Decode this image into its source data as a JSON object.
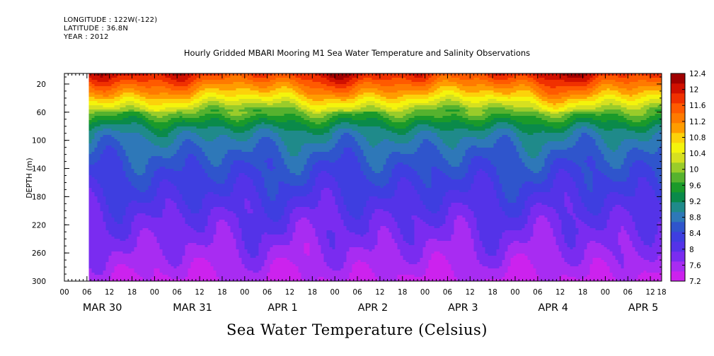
{
  "header": {
    "longitude": "LONGITUDE : 122W(-122)",
    "latitude": "LATITUDE : 36.8N",
    "year": "YEAR : 2012"
  },
  "chart_data": {
    "type": "heatmap",
    "title": "Hourly Gridded MBARI Mooring M1 Sea Water Temperature and Salinity Observations",
    "subtitle": "Sea Water Temperature (Celsius)",
    "xlabel": "",
    "ylabel": "DEPTH (m)",
    "x_unit": "hours since MAR 30 00:00",
    "xlim": [
      -6,
      153
    ],
    "data_start_hour": 0.5,
    "ylim": [
      300,
      5
    ],
    "y_reversed": true,
    "y_ticks": [
      20,
      60,
      100,
      140,
      180,
      220,
      260,
      300
    ],
    "x_hour_ticks": [
      "00",
      "06",
      "12",
      "18",
      "00",
      "06",
      "12",
      "18",
      "00",
      "06",
      "12",
      "18",
      "00",
      "06",
      "12",
      "18",
      "00",
      "06",
      "12",
      "18",
      "00",
      "06",
      "12",
      "18",
      "00",
      "06",
      "12",
      "18"
    ],
    "x_hour_tick_values": [
      -6,
      0,
      6,
      12,
      18,
      24,
      30,
      36,
      42,
      48,
      54,
      60,
      66,
      72,
      78,
      84,
      90,
      96,
      102,
      108,
      114,
      120,
      126,
      132,
      138,
      144,
      150,
      153
    ],
    "x_date_labels": [
      {
        "label": "MAR 30",
        "hour": 6
      },
      {
        "label": "MAR 31",
        "hour": 30
      },
      {
        "label": "APR  1",
        "hour": 54
      },
      {
        "label": "APR  2",
        "hour": 78
      },
      {
        "label": "APR  3",
        "hour": 102
      },
      {
        "label": "APR  4",
        "hour": 126
      },
      {
        "label": "APR  5",
        "hour": 150
      }
    ],
    "colorbar_levels": [
      7.2,
      7.6,
      8,
      8.4,
      8.8,
      9.2,
      9.6,
      10,
      10.4,
      10.8,
      11.2,
      11.6,
      12,
      12.4
    ],
    "colorbar_colors": [
      "#cc22ee",
      "#a82cf2",
      "#7a2cf0",
      "#5433e8",
      "#3e3ee0",
      "#2f55cc",
      "#2e78b8",
      "#1f8a8a",
      "#0a8a4a",
      "#1a9a2a",
      "#56b22e",
      "#9acc2a",
      "#d6e020",
      "#f4f40c",
      "#fcd20a",
      "#ff9c00",
      "#ff7a00",
      "#ff5a00",
      "#f03000",
      "#d01000",
      "#a00000"
    ],
    "depth_profile": [
      {
        "depth": 5,
        "temp": 11.9
      },
      {
        "depth": 20,
        "temp": 11.4
      },
      {
        "depth": 35,
        "temp": 10.9
      },
      {
        "depth": 50,
        "temp": 10.3
      },
      {
        "depth": 60,
        "temp": 9.9
      },
      {
        "depth": 75,
        "temp": 9.4
      },
      {
        "depth": 90,
        "temp": 9.0
      },
      {
        "depth": 110,
        "temp": 8.75
      },
      {
        "depth": 130,
        "temp": 8.55
      },
      {
        "depth": 150,
        "temp": 8.4
      },
      {
        "depth": 170,
        "temp": 8.25
      },
      {
        "depth": 190,
        "temp": 8.1
      },
      {
        "depth": 210,
        "temp": 7.95
      },
      {
        "depth": 230,
        "temp": 7.85
      },
      {
        "depth": 250,
        "temp": 7.72
      },
      {
        "depth": 270,
        "temp": 7.6
      },
      {
        "depth": 290,
        "temp": 7.45
      },
      {
        "depth": 300,
        "temp": 7.35
      }
    ]
  }
}
